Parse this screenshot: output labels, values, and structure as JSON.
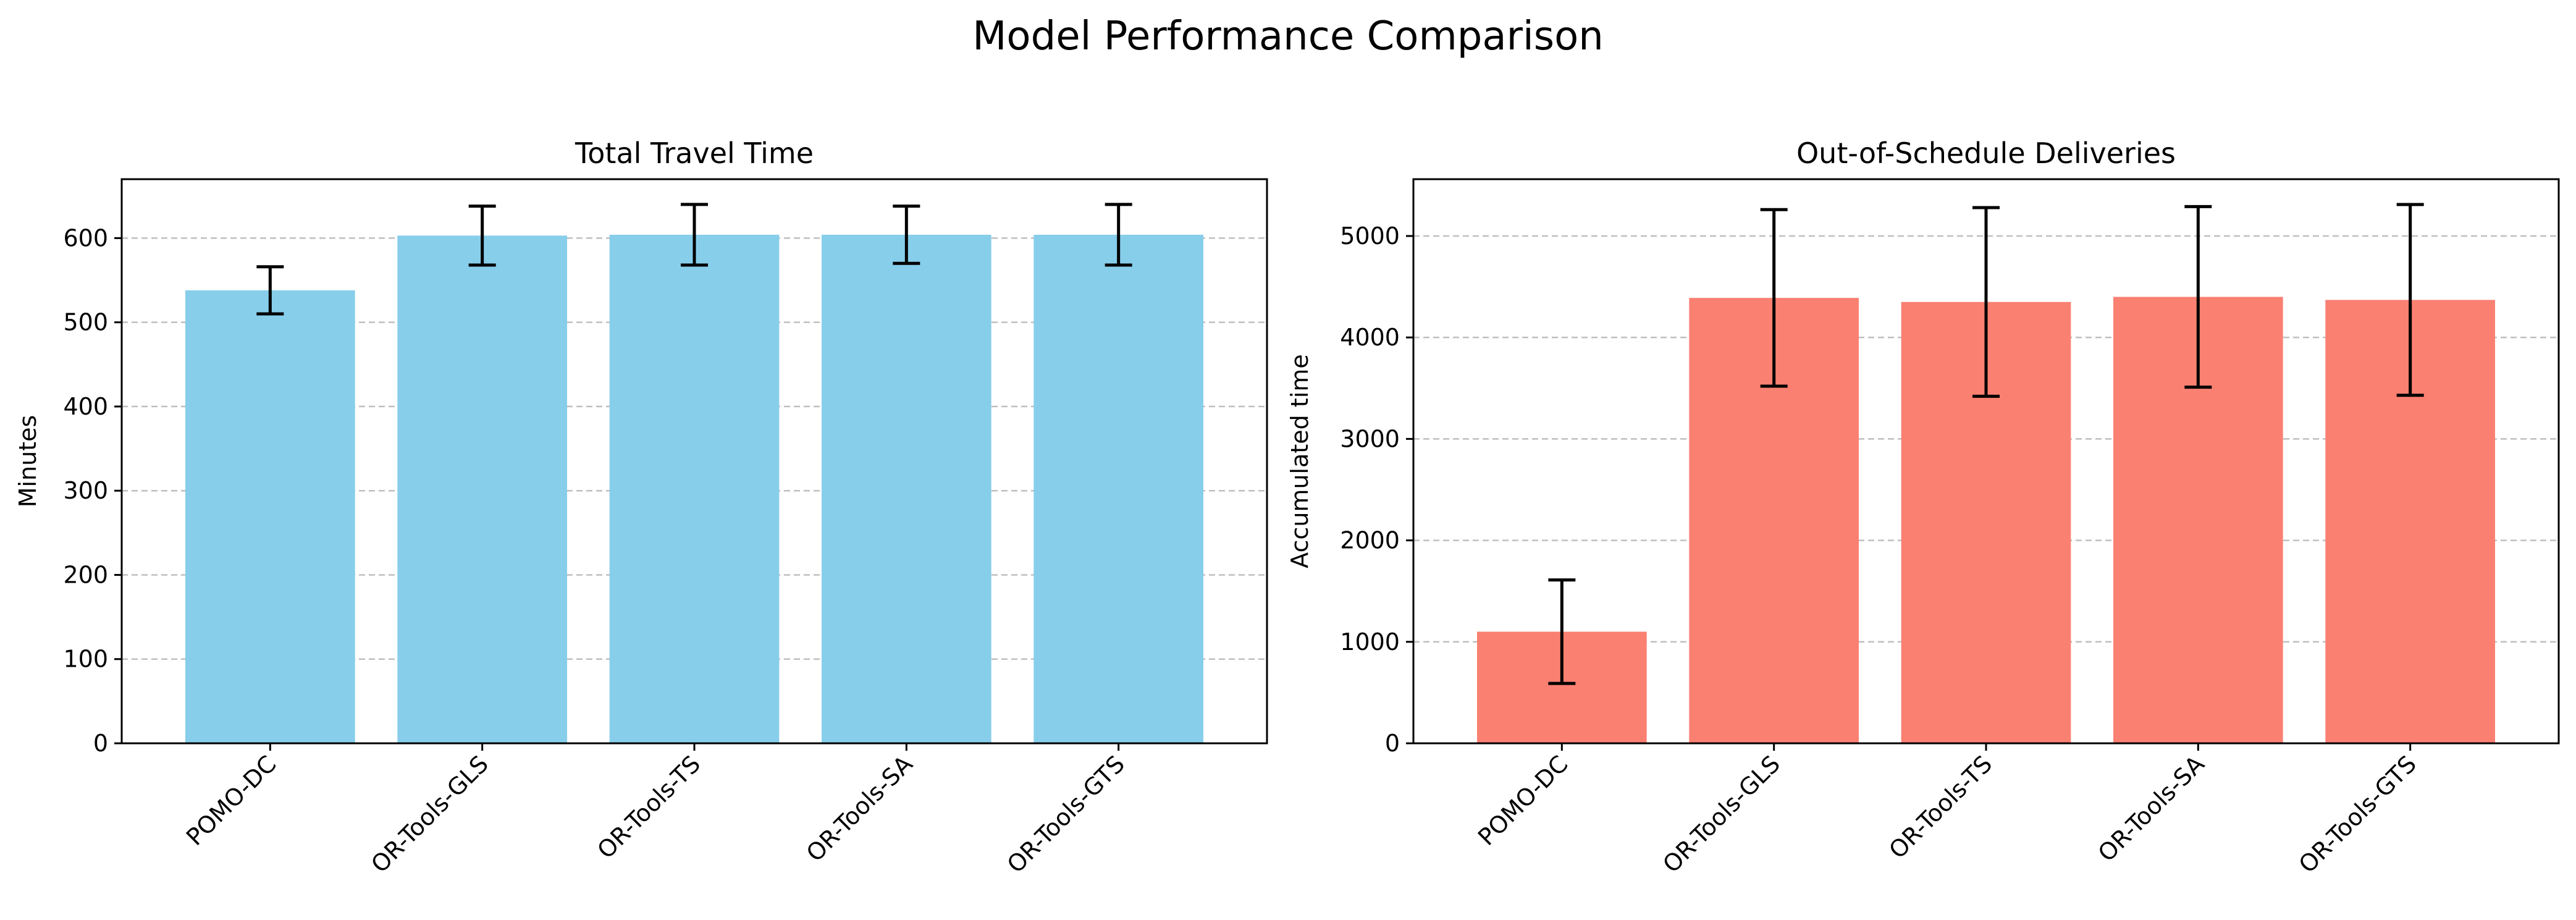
{
  "figure": {
    "title": "Model Performance Comparison"
  },
  "colors": {
    "travel": "#87CEEB",
    "schedule": "#FA8072",
    "errorbar": "#000000",
    "grid": "#b0b0b0"
  },
  "chart_data": [
    {
      "type": "bar",
      "title": "Total Travel Time",
      "xlabel": "",
      "ylabel": "Minutes",
      "categories": [
        "POMO-DC",
        "OR-Tools-GLS",
        "OR-Tools-TS",
        "OR-Tools-SA",
        "OR-Tools-GTS"
      ],
      "values": [
        538,
        603,
        604,
        604,
        604
      ],
      "errors": [
        28,
        35,
        36,
        34,
        36
      ],
      "ylim": [
        0,
        670
      ],
      "yticks": [
        0,
        100,
        200,
        300,
        400,
        500,
        600
      ],
      "grid": "y-dashed",
      "color": "#87CEEB"
    },
    {
      "type": "bar",
      "title": "Out-of-Schedule Deliveries",
      "xlabel": "",
      "ylabel": "Accumulated time",
      "categories": [
        "POMO-DC",
        "OR-Tools-GLS",
        "OR-Tools-TS",
        "OR-Tools-SA",
        "OR-Tools-GTS"
      ],
      "values": [
        1100,
        4390,
        4350,
        4400,
        4370
      ],
      "errors": [
        510,
        870,
        930,
        890,
        940
      ],
      "ylim": [
        0,
        5560
      ],
      "yticks": [
        0,
        1000,
        2000,
        3000,
        4000,
        5000
      ],
      "grid": "y-dashed",
      "color": "#FA8072"
    }
  ]
}
